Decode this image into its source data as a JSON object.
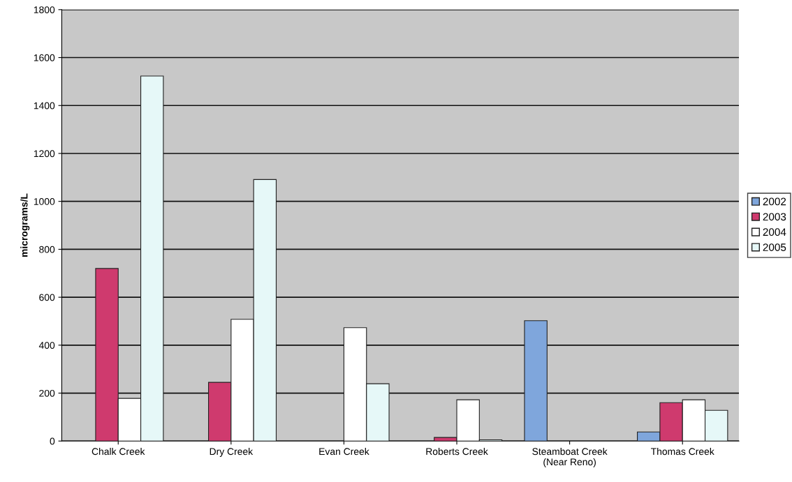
{
  "chart_data": {
    "type": "bar",
    "ylabel": "micrograms/L",
    "categories": [
      "Chalk Creek",
      "Dry Creek",
      "Evan Creek",
      "Roberts Creek",
      "Steamboat Creek\n(Near Reno)",
      "Thomas Creek"
    ],
    "series": [
      {
        "name": "2002",
        "color": "#7fa6dc",
        "values": [
          null,
          null,
          null,
          null,
          502,
          38
        ]
      },
      {
        "name": "2003",
        "color": "#cf3a6e",
        "values": [
          720,
          245,
          null,
          15,
          null,
          160
        ]
      },
      {
        "name": "2004",
        "color": "#ffffff",
        "values": [
          178,
          508,
          473,
          172,
          null,
          172
        ]
      },
      {
        "name": "2005",
        "color": "#e6f8f8",
        "values": [
          1523,
          1091,
          239,
          5,
          null,
          128
        ]
      }
    ],
    "ylim": [
      0,
      1800
    ],
    "yticks": [
      0,
      200,
      400,
      600,
      800,
      1000,
      1200,
      1400,
      1600,
      1800
    ],
    "grid": "y",
    "legend": "right"
  }
}
